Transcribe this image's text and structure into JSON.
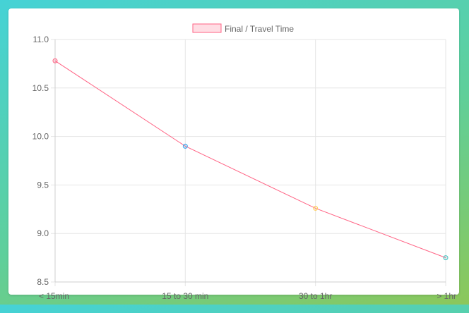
{
  "chart_data": {
    "type": "line",
    "categories": [
      "< 15min",
      "15 to 30 min",
      "30 to 1hr",
      "> 1hr"
    ],
    "series": [
      {
        "name": "Final / Travel Time",
        "values": [
          10.78,
          9.9,
          9.26,
          8.75
        ],
        "line_color": "#ff6384",
        "fill_color": "#ffdde4",
        "point_colors": [
          "#ff6384",
          "#36a2eb",
          "#ffce56",
          "#4bc0c0"
        ]
      }
    ],
    "ylim": [
      8.5,
      11.0
    ],
    "yticks": [
      "11.0",
      "10.5",
      "10.0",
      "9.5",
      "9.0",
      "8.5"
    ],
    "grid": true,
    "legend_position": "top-center"
  }
}
